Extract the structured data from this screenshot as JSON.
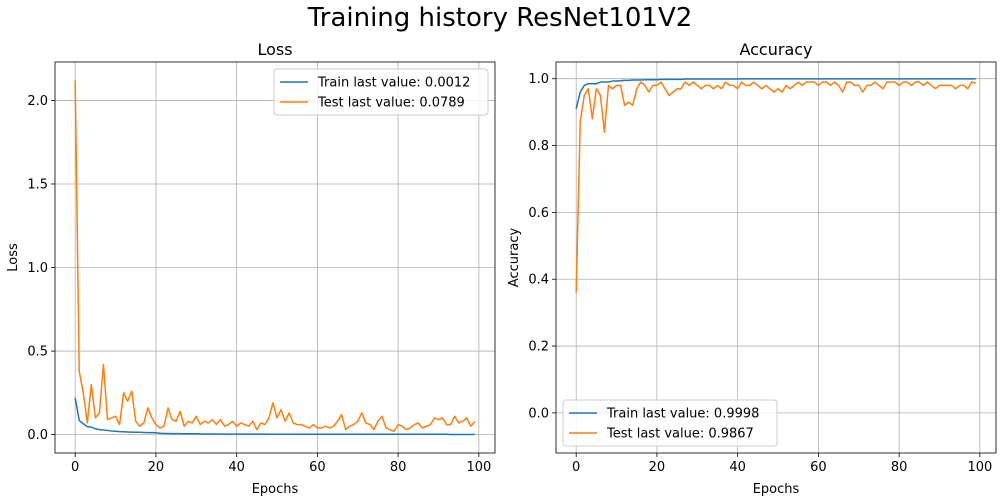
{
  "figure": {
    "title": "Training history ResNet101V2"
  },
  "colors": {
    "train": "#1f77b4",
    "test": "#ff7f0e",
    "grid": "#b0b0b0"
  },
  "chart_data": [
    {
      "type": "line",
      "title": "Loss",
      "xlabel": "Epochs",
      "ylabel": "Loss",
      "xlim": [
        -5,
        104
      ],
      "ylim": [
        -0.11,
        2.23
      ],
      "xticks": [
        0,
        20,
        40,
        60,
        80,
        100
      ],
      "xtick_labels": [
        "0",
        "20",
        "40",
        "60",
        "80",
        "100"
      ],
      "yticks": [
        0.0,
        0.5,
        1.0,
        1.5,
        2.0
      ],
      "ytick_labels": [
        "0.0",
        "0.5",
        "1.0",
        "1.5",
        "2.0"
      ],
      "grid": true,
      "legend": "upper right",
      "series": [
        {
          "name": "Train last value: 0.0012",
          "color": "#1f77b4",
          "values": [
            0.22,
            0.085,
            0.065,
            0.048,
            0.045,
            0.035,
            0.03,
            0.028,
            0.025,
            0.022,
            0.02,
            0.018,
            0.017,
            0.016,
            0.015,
            0.014,
            0.014,
            0.013,
            0.012,
            0.012,
            0.011,
            0.008,
            0.007,
            0.007,
            0.006,
            0.006,
            0.006,
            0.005,
            0.005,
            0.005,
            0.005,
            0.004,
            0.004,
            0.004,
            0.004,
            0.004,
            0.003,
            0.003,
            0.003,
            0.003,
            0.003,
            0.003,
            0.003,
            0.003,
            0.003,
            0.003,
            0.003,
            0.003,
            0.002,
            0.002,
            0.002,
            0.002,
            0.002,
            0.002,
            0.002,
            0.002,
            0.002,
            0.002,
            0.002,
            0.002,
            0.002,
            0.002,
            0.002,
            0.002,
            0.002,
            0.002,
            0.002,
            0.002,
            0.002,
            0.002,
            0.002,
            0.002,
            0.002,
            0.002,
            0.002,
            0.002,
            0.002,
            0.002,
            0.002,
            0.002,
            0.002,
            0.002,
            0.002,
            0.002,
            0.002,
            0.002,
            0.002,
            0.002,
            0.002,
            0.002,
            0.002,
            0.002,
            0.002,
            0.001,
            0.001,
            0.001,
            0.001,
            0.001,
            0.001,
            0.0012
          ]
        },
        {
          "name": "Test last value: 0.0789",
          "color": "#ff7f0e",
          "values": [
            2.12,
            0.38,
            0.25,
            0.07,
            0.3,
            0.1,
            0.13,
            0.42,
            0.09,
            0.1,
            0.11,
            0.06,
            0.25,
            0.2,
            0.26,
            0.08,
            0.05,
            0.07,
            0.16,
            0.1,
            0.06,
            0.04,
            0.05,
            0.16,
            0.09,
            0.08,
            0.14,
            0.05,
            0.08,
            0.07,
            0.11,
            0.06,
            0.08,
            0.07,
            0.09,
            0.06,
            0.09,
            0.05,
            0.06,
            0.08,
            0.05,
            0.07,
            0.06,
            0.05,
            0.08,
            0.03,
            0.07,
            0.06,
            0.1,
            0.19,
            0.1,
            0.15,
            0.08,
            0.13,
            0.07,
            0.06,
            0.06,
            0.05,
            0.04,
            0.06,
            0.04,
            0.04,
            0.05,
            0.04,
            0.05,
            0.08,
            0.12,
            0.03,
            0.05,
            0.06,
            0.08,
            0.13,
            0.07,
            0.06,
            0.03,
            0.08,
            0.11,
            0.04,
            0.03,
            0.02,
            0.06,
            0.05,
            0.03,
            0.04,
            0.06,
            0.07,
            0.04,
            0.05,
            0.06,
            0.1,
            0.09,
            0.1,
            0.06,
            0.06,
            0.11,
            0.07,
            0.08,
            0.1,
            0.05,
            0.0789
          ]
        }
      ]
    },
    {
      "type": "line",
      "title": "Accuracy",
      "xlabel": "Epochs",
      "ylabel": "Accuracy",
      "xlim": [
        -5,
        104
      ],
      "ylim": [
        -0.12,
        1.05
      ],
      "xticks": [
        0,
        20,
        40,
        60,
        80,
        100
      ],
      "xtick_labels": [
        "0",
        "20",
        "40",
        "60",
        "80",
        "100"
      ],
      "yticks": [
        0.0,
        0.2,
        0.4,
        0.6,
        0.8,
        1.0
      ],
      "ytick_labels": [
        "0.0",
        "0.2",
        "0.4",
        "0.6",
        "0.8",
        "1.0"
      ],
      "grid": true,
      "legend": "lower left",
      "series": [
        {
          "name": "Train last value: 0.9998",
          "color": "#1f77b4",
          "values": [
            0.91,
            0.96,
            0.98,
            0.985,
            0.985,
            0.985,
            0.99,
            0.99,
            0.99,
            0.993,
            0.993,
            0.994,
            0.995,
            0.995,
            0.996,
            0.996,
            0.996,
            0.997,
            0.997,
            0.997,
            0.997,
            0.998,
            0.998,
            0.998,
            0.998,
            0.998,
            0.998,
            0.999,
            0.999,
            0.999,
            0.999,
            0.999,
            0.999,
            0.999,
            0.999,
            0.999,
            0.999,
            0.999,
            0.999,
            0.999,
            0.999,
            0.9995,
            0.9995,
            0.9995,
            0.9995,
            0.9995,
            0.9995,
            0.9995,
            0.9995,
            0.9995,
            0.9995,
            0.9995,
            0.9995,
            0.9995,
            0.9995,
            0.9995,
            0.9995,
            0.9995,
            0.9995,
            0.9995,
            0.9995,
            0.9995,
            0.9995,
            0.9995,
            0.9995,
            0.9995,
            0.9995,
            0.9995,
            0.9995,
            0.9995,
            0.9995,
            0.9995,
            0.9995,
            0.9995,
            0.9995,
            0.9995,
            0.9995,
            0.9995,
            0.9995,
            0.9995,
            0.9995,
            0.9995,
            0.9995,
            0.9995,
            0.9995,
            0.9995,
            0.9995,
            0.9995,
            0.9995,
            0.9995,
            0.9995,
            0.9995,
            0.9995,
            0.9995,
            0.9995,
            0.9995,
            0.9995,
            0.9995,
            0.9995,
            0.9998
          ]
        },
        {
          "name": "Test last value: 0.9867",
          "color": "#ff7f0e",
          "values": [
            0.36,
            0.87,
            0.95,
            0.97,
            0.88,
            0.97,
            0.95,
            0.84,
            0.98,
            0.97,
            0.98,
            0.98,
            0.92,
            0.93,
            0.92,
            0.97,
            0.99,
            0.98,
            0.96,
            0.98,
            0.98,
            0.99,
            0.97,
            0.95,
            0.96,
            0.97,
            0.97,
            0.99,
            0.98,
            0.99,
            0.98,
            0.97,
            0.98,
            0.98,
            0.97,
            0.98,
            0.97,
            0.99,
            0.98,
            0.98,
            0.97,
            0.99,
            0.98,
            0.98,
            0.99,
            0.98,
            0.97,
            0.98,
            0.97,
            0.96,
            0.97,
            0.96,
            0.98,
            0.97,
            0.98,
            0.99,
            0.98,
            0.99,
            0.99,
            0.99,
            0.98,
            0.99,
            0.99,
            0.98,
            0.99,
            0.98,
            0.96,
            0.99,
            0.99,
            0.98,
            0.98,
            0.96,
            0.98,
            0.98,
            0.99,
            0.98,
            0.97,
            0.99,
            0.99,
            0.99,
            0.98,
            0.99,
            0.99,
            0.98,
            0.99,
            0.99,
            0.98,
            0.99,
            0.98,
            0.97,
            0.98,
            0.98,
            0.98,
            0.98,
            0.97,
            0.98,
            0.98,
            0.97,
            0.99,
            0.9867
          ]
        }
      ]
    }
  ]
}
